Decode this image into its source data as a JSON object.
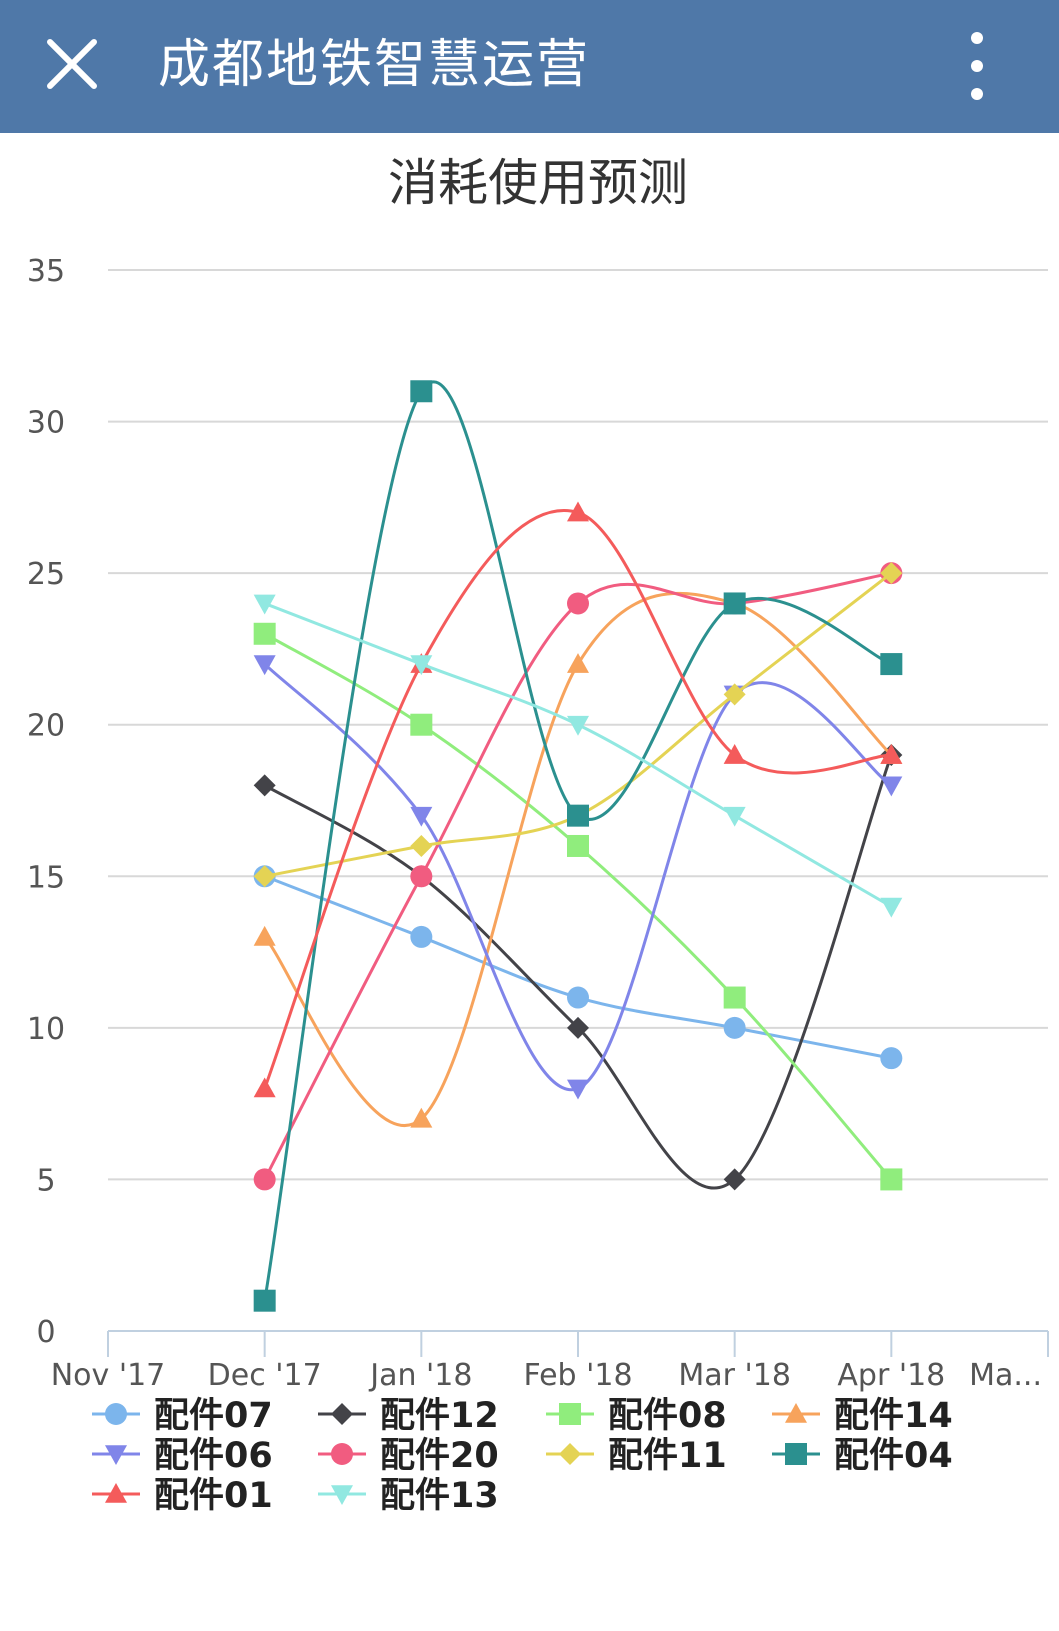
{
  "header": {
    "title": "成都地铁智慧运营",
    "close_icon": "close-icon",
    "menu_icon": "more-vertical-icon",
    "bg_color": "#4f78a8"
  },
  "chart_data": {
    "type": "line",
    "title": "消耗使用预测",
    "xlabel": "",
    "ylabel": "",
    "x_ticks": [
      "Nov '17",
      "Dec '17",
      "Jan '18",
      "Feb '18",
      "Mar '18",
      "Apr '18",
      "Ma..."
    ],
    "y_ticks": [
      "0",
      "5",
      "10",
      "15",
      "20",
      "25",
      "30",
      "35"
    ],
    "categories": [
      "Dec '17",
      "Jan '18",
      "Feb '18",
      "Mar '18",
      "Apr '18"
    ],
    "ylim": [
      0,
      35
    ],
    "grid": true,
    "legend_position": "bottom",
    "series": [
      {
        "name": "配件07",
        "color": "#7cb5ec",
        "marker": "circle",
        "values": [
          15,
          13,
          11,
          10,
          9
        ]
      },
      {
        "name": "配件12",
        "color": "#434348",
        "marker": "diamond",
        "values": [
          18,
          15,
          10,
          5,
          19
        ]
      },
      {
        "name": "配件08",
        "color": "#90ed7d",
        "marker": "square",
        "values": [
          23,
          20,
          16,
          11,
          5
        ]
      },
      {
        "name": "配件14",
        "color": "#f7a35c",
        "marker": "triangle",
        "values": [
          13,
          7,
          22,
          24,
          19
        ]
      },
      {
        "name": "配件06",
        "color": "#8085e9",
        "marker": "triangle-down",
        "values": [
          22,
          17,
          8,
          21,
          18
        ]
      },
      {
        "name": "配件20",
        "color": "#f15c80",
        "marker": "circle",
        "values": [
          5,
          15,
          24,
          24,
          25
        ]
      },
      {
        "name": "配件11",
        "color": "#e4d354",
        "marker": "diamond",
        "values": [
          15,
          16,
          17,
          21,
          25
        ]
      },
      {
        "name": "配件04",
        "color": "#2b908f",
        "marker": "square",
        "values": [
          1,
          31,
          17,
          24,
          22
        ]
      },
      {
        "name": "配件01",
        "color": "#f45b5b",
        "marker": "triangle",
        "values": [
          8,
          22,
          27,
          19,
          19
        ]
      },
      {
        "name": "配件13",
        "color": "#91e8e1",
        "marker": "triangle-down",
        "values": [
          24,
          22,
          20,
          17,
          14
        ]
      }
    ]
  }
}
